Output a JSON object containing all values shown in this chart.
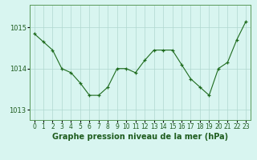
{
  "x": [
    0,
    1,
    2,
    3,
    4,
    5,
    6,
    7,
    8,
    9,
    10,
    11,
    12,
    13,
    14,
    15,
    16,
    17,
    18,
    19,
    20,
    21,
    22,
    23
  ],
  "y": [
    1014.85,
    1014.65,
    1014.45,
    1014.0,
    1013.9,
    1013.65,
    1013.35,
    1013.35,
    1013.55,
    1014.0,
    1014.0,
    1013.9,
    1014.2,
    1014.45,
    1014.45,
    1014.45,
    1014.1,
    1013.75,
    1013.55,
    1013.35,
    1014.0,
    1014.15,
    1014.7,
    1015.15
  ],
  "ylim": [
    1012.75,
    1015.55
  ],
  "yticks": [
    1013.0,
    1014.0,
    1015.0
  ],
  "xticks": [
    0,
    1,
    2,
    3,
    4,
    5,
    6,
    7,
    8,
    9,
    10,
    11,
    12,
    13,
    14,
    15,
    16,
    17,
    18,
    19,
    20,
    21,
    22,
    23
  ],
  "line_color": "#1e6b1e",
  "marker": "+",
  "marker_color": "#1e6b1e",
  "bg_color": "#d8f5f0",
  "grid_color": "#b0d8d0",
  "xlabel": "Graphe pression niveau de la mer (hPa)",
  "tick_color": "#1e5c1e",
  "tick_fontsize": 5.5,
  "ytick_fontsize": 6,
  "spine_color": "#5a9a5a"
}
